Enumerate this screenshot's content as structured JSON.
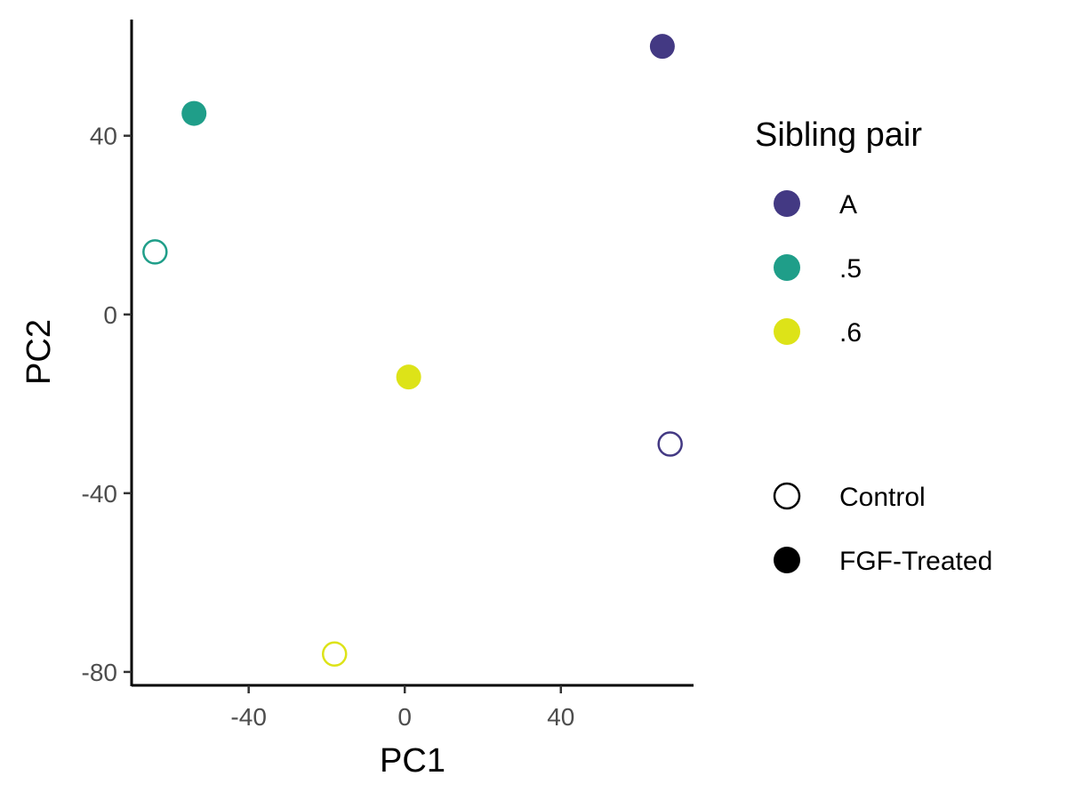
{
  "chart_data": {
    "type": "scatter",
    "xlabel": "PC1",
    "ylabel": "PC2",
    "xlim": [
      -70,
      74
    ],
    "ylim": [
      -83,
      66
    ],
    "x_ticks": [
      -40,
      0,
      40
    ],
    "y_ticks": [
      -80,
      -40,
      0,
      40
    ],
    "x_tick_labels": [
      "-40",
      "0",
      "40"
    ],
    "y_tick_labels": [
      "-80",
      "-40",
      "0",
      "40"
    ],
    "grid": false,
    "legend_position": "right",
    "series": [
      {
        "name": "A",
        "color": "#433983",
        "points": [
          {
            "x": 66,
            "y": 60,
            "treatment": "FGF-Treated"
          },
          {
            "x": 68,
            "y": -29,
            "treatment": "Control"
          }
        ]
      },
      {
        "name": ".5",
        "color": "#1f9e89",
        "points": [
          {
            "x": -54,
            "y": 45,
            "treatment": "FGF-Treated"
          },
          {
            "x": -64,
            "y": 14,
            "treatment": "Control"
          }
        ]
      },
      {
        "name": ".6",
        "color": "#dde318",
        "points": [
          {
            "x": 1,
            "y": -14,
            "treatment": "FGF-Treated"
          },
          {
            "x": -18,
            "y": -76,
            "treatment": "Control"
          }
        ]
      }
    ],
    "legends": [
      {
        "title": "Sibling pair",
        "entries": [
          {
            "label": "A",
            "color": "#433983",
            "shape": "filled-circle"
          },
          {
            "label": ".5",
            "color": "#1f9e89",
            "shape": "filled-circle"
          },
          {
            "label": ".6",
            "color": "#dde318",
            "shape": "filled-circle"
          }
        ]
      },
      {
        "title": "",
        "entries": [
          {
            "label": "Control",
            "color": "#000000",
            "shape": "open-circle"
          },
          {
            "label": "FGF-Treated",
            "color": "#000000",
            "shape": "filled-circle"
          }
        ]
      }
    ]
  }
}
